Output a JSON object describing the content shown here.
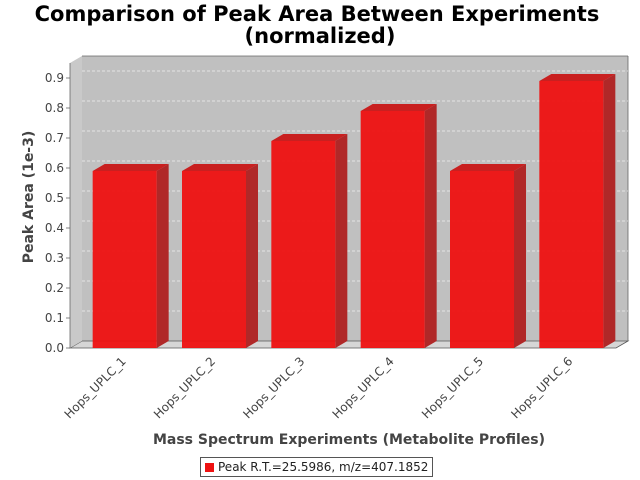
{
  "chart_data": {
    "type": "bar",
    "title_line1": "Comparison of Peak Area Between Experiments",
    "title_line2": "(normalized)",
    "xlabel": "Mass Spectrum Experiments (Metabolite Profiles)",
    "ylabel": "Peak Area (1e-3)",
    "categories": [
      "Hops_UPLC_1",
      "Hops_UPLC_2",
      "Hops_UPLC_3",
      "Hops_UPLC_4",
      "Hops_UPLC_5",
      "Hops_UPLC_6"
    ],
    "series": [
      {
        "name": "Peak R.T.=25.5986, m/z=407.1852",
        "values": [
          0.59,
          0.59,
          0.69,
          0.79,
          0.59,
          0.89
        ]
      }
    ],
    "ylim": [
      0,
      0.95
    ],
    "yticks": [
      "0.0",
      "0.1",
      "0.2",
      "0.3",
      "0.4",
      "0.5",
      "0.6",
      "0.7",
      "0.8",
      "0.9"
    ],
    "grid": true,
    "legend_position": "bottom",
    "bar_color": "#ee1111",
    "plot_background": "#c0c0c0"
  }
}
